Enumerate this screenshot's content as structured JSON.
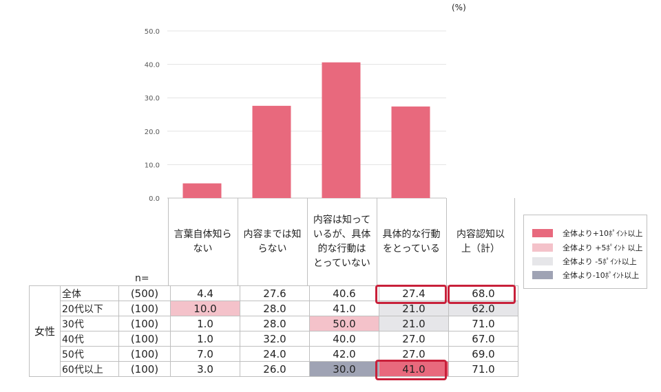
{
  "unit_label": "(%)",
  "n_label": "n=",
  "chart_data": {
    "type": "bar",
    "categories": [
      "言葉自体知らない",
      "内容までは知らない",
      "内容は知っているが、具体的な行動はとっていない",
      "具体的な行動をとっている"
    ],
    "values": [
      4.4,
      27.6,
      40.6,
      27.4
    ],
    "ylim": [
      0,
      50
    ],
    "yticks": [
      "0.0",
      "10.0",
      "20.0",
      "30.0",
      "40.0",
      "50.0"
    ],
    "grid": true,
    "bar_color": "#e8697d"
  },
  "table": {
    "group_label": "女性",
    "headers": [
      [
        "言葉自体知ら",
        "ない"
      ],
      [
        "内容までは知",
        "らない"
      ],
      [
        "内容は知って",
        "いるが、具体",
        "的な行動は",
        "とっていない"
      ],
      [
        "具体的な行動",
        "をとっている"
      ],
      [
        "内容認知以",
        "上（計）"
      ]
    ],
    "rows": [
      {
        "label": "全体",
        "n": "(500)",
        "values": [
          "4.4",
          "27.6",
          "40.6",
          "27.4",
          "68.0"
        ],
        "marks": [
          "",
          "",
          "",
          "",
          ""
        ]
      },
      {
        "label": "20代以下",
        "n": "(100)",
        "values": [
          "10.0",
          "28.0",
          "41.0",
          "21.0",
          "62.0"
        ],
        "marks": [
          "plus5",
          "",
          "",
          "minus5",
          "minus5"
        ]
      },
      {
        "label": "30代",
        "n": "(100)",
        "values": [
          "1.0",
          "28.0",
          "50.0",
          "21.0",
          "71.0"
        ],
        "marks": [
          "",
          "",
          "plus5",
          "minus5",
          ""
        ]
      },
      {
        "label": "40代",
        "n": "(100)",
        "values": [
          "1.0",
          "32.0",
          "40.0",
          "27.0",
          "67.0"
        ],
        "marks": [
          "",
          "",
          "",
          "",
          ""
        ]
      },
      {
        "label": "50代",
        "n": "(100)",
        "values": [
          "7.0",
          "24.0",
          "42.0",
          "27.0",
          "69.0"
        ],
        "marks": [
          "",
          "",
          "",
          "",
          ""
        ]
      },
      {
        "label": "60代以上",
        "n": "(100)",
        "values": [
          "3.0",
          "26.0",
          "30.0",
          "41.0",
          "71.0"
        ],
        "marks": [
          "",
          "",
          "minus10",
          "plus10",
          ""
        ]
      }
    ]
  },
  "legend": [
    {
      "key": "plus10",
      "label": "全体より+10ﾎﾟｲﾝﾄ以上",
      "color": "#e8697d"
    },
    {
      "key": "plus5",
      "label": "全体より +5ﾎﾟｲﾝﾄ 以上",
      "color": "#f4c2ca"
    },
    {
      "key": "minus5",
      "label": "全体より -5ﾎﾟｲﾝﾄ以上",
      "color": "#e6e6e9"
    },
    {
      "key": "minus10",
      "label": "全体より-10ﾎﾟｲﾝﾄ以上",
      "color": "#9fa3b4"
    }
  ]
}
